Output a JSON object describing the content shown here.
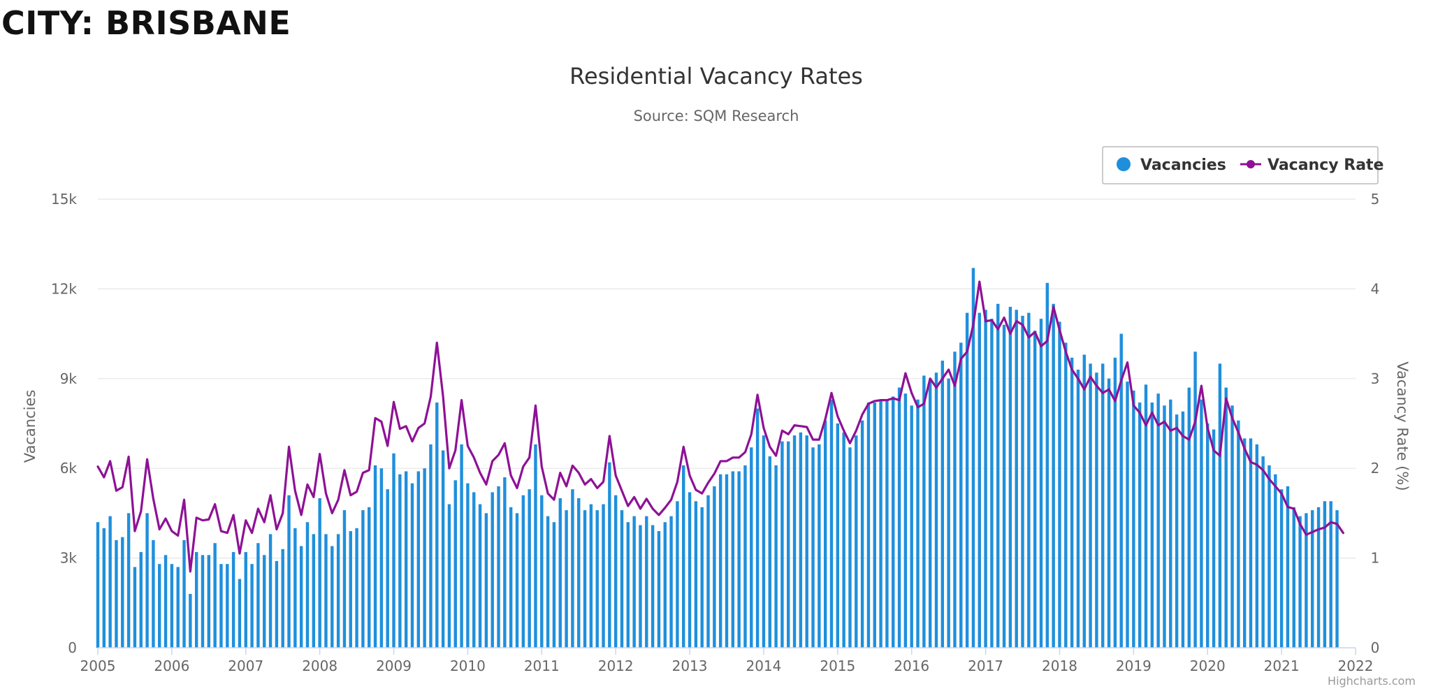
{
  "page": {
    "heading": "CITY: BRISBANE"
  },
  "chart_data": {
    "type": "bar+line",
    "title": "Residential Vacancy Rates",
    "subtitle": "Source: SQM Research",
    "credits": "Highcharts.com",
    "x": {
      "type": "datetime",
      "start": "2005-01",
      "end": "2021-11",
      "tick_labels": [
        "2005",
        "2006",
        "2007",
        "2008",
        "2009",
        "2010",
        "2011",
        "2012",
        "2013",
        "2014",
        "2015",
        "2016",
        "2017",
        "2018",
        "2019",
        "2020",
        "2021",
        "2022"
      ],
      "range": [
        "2005-01",
        "2022-01"
      ]
    },
    "y_left": {
      "label": "Vacancies",
      "ylim": [
        0,
        15000
      ],
      "tick_labels": [
        "0",
        "3k",
        "6k",
        "9k",
        "12k",
        "15k"
      ]
    },
    "y_right": {
      "label": "Vacancy Rate (%)",
      "ylim": [
        0,
        5
      ],
      "tick_labels": [
        "0",
        "1",
        "2",
        "3",
        "4",
        "5"
      ]
    },
    "grid": true,
    "legend": {
      "placement": "top-right",
      "entries": [
        "Vacancies",
        "Vacancy Rate"
      ]
    },
    "colors": {
      "bars": "#1f8fdc",
      "line": "#8e1196",
      "grid": "#e6e6e6",
      "axis_text": "#666666",
      "title": "#333333"
    },
    "series": [
      {
        "name": "Vacancies",
        "type": "column",
        "axis": "left",
        "values": [
          4200,
          4000,
          4400,
          3600,
          3700,
          4500,
          2700,
          3200,
          4500,
          3600,
          2800,
          3100,
          2800,
          2700,
          3600,
          1800,
          3200,
          3100,
          3100,
          3500,
          2800,
          2800,
          3200,
          2300,
          3200,
          2800,
          3500,
          3100,
          3800,
          2900,
          3300,
          5100,
          4000,
          3400,
          4200,
          3800,
          5000,
          3800,
          3400,
          3800,
          4600,
          3900,
          4000,
          4600,
          4700,
          6100,
          6000,
          5300,
          6500,
          5800,
          5900,
          5500,
          5900,
          6000,
          6800,
          8200,
          6600,
          4800,
          5600,
          6800,
          5500,
          5200,
          4800,
          4500,
          5200,
          5400,
          5700,
          4700,
          4500,
          5100,
          5300,
          6800,
          5100,
          4400,
          4200,
          5000,
          4600,
          5300,
          5000,
          4600,
          4800,
          4600,
          4800,
          6200,
          5100,
          4600,
          4200,
          4400,
          4100,
          4400,
          4100,
          3900,
          4200,
          4400,
          4900,
          6100,
          5200,
          4900,
          4700,
          5100,
          5400,
          5800,
          5800,
          5900,
          5900,
          6100,
          6700,
          8000,
          7100,
          6400,
          6100,
          6900,
          6900,
          7100,
          7200,
          7100,
          6700,
          6800,
          7600,
          8300,
          7500,
          7200,
          6700,
          7100,
          7600,
          8200,
          8200,
          8300,
          8300,
          8400,
          8700,
          8500,
          8100,
          8300,
          9100,
          8900,
          9200,
          9600,
          9000,
          9900,
          10200,
          11200,
          12700,
          11200,
          11300,
          11000,
          11500,
          10800,
          11400,
          11300,
          11100,
          11200,
          10600,
          11000,
          12200,
          11500,
          10900,
          10200,
          9700,
          9300,
          9800,
          9500,
          9200,
          9500,
          9000,
          9700,
          10500,
          8900,
          8600,
          8200,
          8800,
          8200,
          8500,
          8100,
          8300,
          7800,
          7900,
          8700,
          9900,
          8300,
          7500,
          7300,
          9500,
          8700,
          8100,
          7600,
          7000,
          7000,
          6800,
          6400,
          6100,
          5800,
          5300,
          5400,
          4700,
          4400,
          4500,
          4600,
          4700,
          4900,
          4900,
          4600
        ]
      },
      {
        "name": "Vacancy Rate",
        "type": "line",
        "axis": "right",
        "values": [
          2.02,
          1.9,
          2.08,
          1.75,
          1.79,
          2.13,
          1.3,
          1.52,
          2.1,
          1.66,
          1.32,
          1.44,
          1.3,
          1.25,
          1.65,
          0.85,
          1.45,
          1.42,
          1.43,
          1.6,
          1.3,
          1.28,
          1.48,
          1.05,
          1.42,
          1.28,
          1.55,
          1.4,
          1.7,
          1.32,
          1.5,
          2.24,
          1.75,
          1.48,
          1.82,
          1.68,
          2.16,
          1.72,
          1.5,
          1.65,
          1.98,
          1.7,
          1.74,
          1.95,
          1.98,
          2.56,
          2.52,
          2.25,
          2.74,
          2.44,
          2.47,
          2.3,
          2.45,
          2.5,
          2.8,
          3.4,
          2.8,
          2.0,
          2.2,
          2.76,
          2.25,
          2.12,
          1.95,
          1.82,
          2.08,
          2.15,
          2.28,
          1.92,
          1.78,
          2.02,
          2.12,
          2.7,
          2.02,
          1.72,
          1.65,
          1.95,
          1.8,
          2.03,
          1.95,
          1.82,
          1.88,
          1.78,
          1.85,
          2.36,
          1.92,
          1.75,
          1.58,
          1.68,
          1.55,
          1.66,
          1.55,
          1.48,
          1.56,
          1.65,
          1.85,
          2.24,
          1.92,
          1.76,
          1.72,
          1.84,
          1.94,
          2.08,
          2.08,
          2.12,
          2.12,
          2.18,
          2.38,
          2.82,
          2.45,
          2.24,
          2.14,
          2.42,
          2.38,
          2.48,
          2.47,
          2.46,
          2.32,
          2.32,
          2.55,
          2.84,
          2.58,
          2.42,
          2.28,
          2.42,
          2.6,
          2.72,
          2.75,
          2.76,
          2.76,
          2.78,
          2.76,
          3.06,
          2.84,
          2.68,
          2.72,
          3.0,
          2.9,
          3.0,
          3.1,
          2.92,
          3.22,
          3.3,
          3.6,
          4.08,
          3.64,
          3.65,
          3.55,
          3.68,
          3.5,
          3.64,
          3.6,
          3.46,
          3.52,
          3.36,
          3.42,
          3.8,
          3.54,
          3.3,
          3.1,
          3.0,
          2.88,
          3.02,
          2.92,
          2.84,
          2.88,
          2.75,
          2.98,
          3.18,
          2.7,
          2.62,
          2.48,
          2.62,
          2.48,
          2.52,
          2.42,
          2.45,
          2.36,
          2.32,
          2.52,
          2.92,
          2.45,
          2.2,
          2.14,
          2.78,
          2.56,
          2.4,
          2.22,
          2.07,
          2.04,
          1.98,
          1.88,
          1.8,
          1.72,
          1.57,
          1.55,
          1.38,
          1.26,
          1.29,
          1.32,
          1.34,
          1.4,
          1.38,
          1.28
        ]
      }
    ]
  }
}
